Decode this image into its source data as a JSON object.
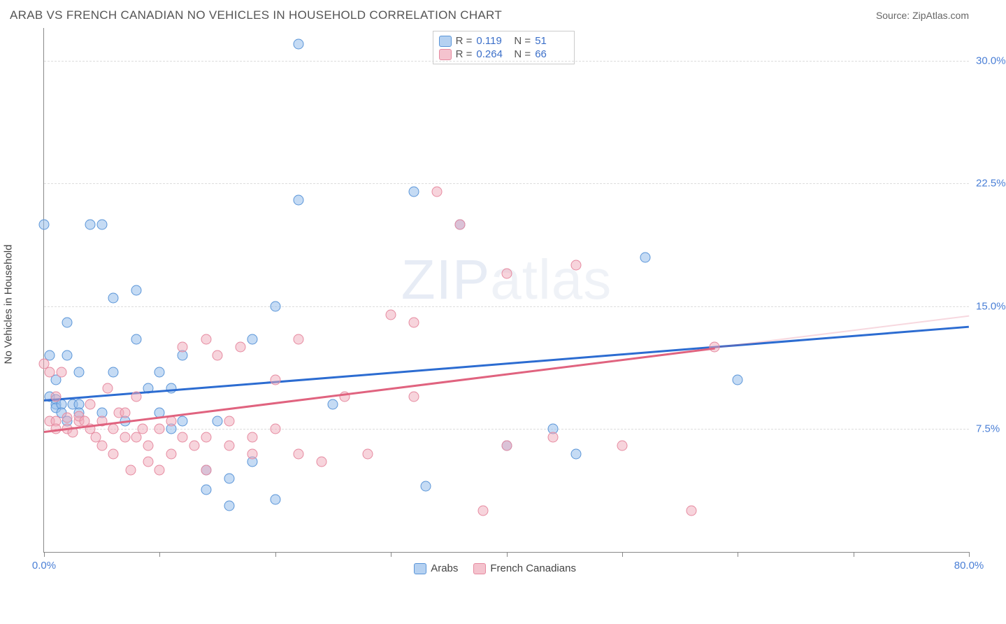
{
  "title": "ARAB VS FRENCH CANADIAN NO VEHICLES IN HOUSEHOLD CORRELATION CHART",
  "source_prefix": "Source: ",
  "source_name": "ZipAtlas.com",
  "ylabel": "No Vehicles in Household",
  "watermark_a": "ZIP",
  "watermark_b": "atlas",
  "chart": {
    "type": "scatter",
    "xlim": [
      0,
      80
    ],
    "ylim": [
      0,
      32
    ],
    "xtick_positions": [
      0,
      10,
      20,
      30,
      40,
      50,
      60,
      70,
      80
    ],
    "xtick_labels": {
      "0": "0.0%",
      "80": "80.0%"
    },
    "ytick_positions": [
      7.5,
      15.0,
      22.5,
      30.0
    ],
    "ytick_labels": [
      "7.5%",
      "15.0%",
      "22.5%",
      "30.0%"
    ],
    "grid_color": "#dddddd",
    "axis_color": "#888888",
    "background_color": "#ffffff",
    "marker_radius": 7.5,
    "series": [
      {
        "name": "Arabs",
        "color_fill": "rgba(150,190,235,0.55)",
        "color_stroke": "#5a95d8",
        "trend_color": "#2c6cd1",
        "R": "0.119",
        "N": "51",
        "trend": {
          "x1": 0,
          "y1": 9.3,
          "x2": 80,
          "y2": 13.8
        },
        "points": [
          [
            0,
            20
          ],
          [
            0.5,
            12
          ],
          [
            0.5,
            9.5
          ],
          [
            1,
            9
          ],
          [
            1,
            9.3
          ],
          [
            1,
            8.8
          ],
          [
            1,
            10.5
          ],
          [
            1.5,
            9
          ],
          [
            1.5,
            8.5
          ],
          [
            2,
            8
          ],
          [
            2,
            12
          ],
          [
            2,
            14
          ],
          [
            2.5,
            9
          ],
          [
            3,
            11
          ],
          [
            3,
            9
          ],
          [
            3,
            8.5
          ],
          [
            4,
            20
          ],
          [
            5,
            20
          ],
          [
            5,
            8.5
          ],
          [
            6,
            11
          ],
          [
            6,
            15.5
          ],
          [
            7,
            8
          ],
          [
            8,
            16
          ],
          [
            8,
            13
          ],
          [
            9,
            10
          ],
          [
            10,
            8.5
          ],
          [
            10,
            11
          ],
          [
            11,
            10
          ],
          [
            11,
            7.5
          ],
          [
            12,
            12
          ],
          [
            12,
            8
          ],
          [
            14,
            3.8
          ],
          [
            14,
            5
          ],
          [
            15,
            8
          ],
          [
            16,
            4.5
          ],
          [
            16,
            2.8
          ],
          [
            18,
            13
          ],
          [
            18,
            5.5
          ],
          [
            20,
            15
          ],
          [
            20,
            3.2
          ],
          [
            22,
            21.5
          ],
          [
            22,
            31
          ],
          [
            25,
            9
          ],
          [
            32,
            22
          ],
          [
            33,
            4
          ],
          [
            36,
            20
          ],
          [
            40,
            6.5
          ],
          [
            44,
            7.5
          ],
          [
            46,
            6
          ],
          [
            52,
            18
          ],
          [
            60,
            10.5
          ]
        ]
      },
      {
        "name": "French Canadians",
        "color_fill": "rgba(240,170,185,0.5)",
        "color_stroke": "#e68aa0",
        "trend_color": "#e0637f",
        "R": "0.264",
        "N": "66",
        "trend": {
          "x1": 0,
          "y1": 7.4,
          "x2": 58,
          "y2": 12.5
        },
        "points": [
          [
            0,
            11.5
          ],
          [
            0.5,
            11
          ],
          [
            0.5,
            8
          ],
          [
            1,
            8
          ],
          [
            1,
            9.5
          ],
          [
            1,
            7.5
          ],
          [
            1.5,
            11
          ],
          [
            2,
            7.5
          ],
          [
            2,
            8.2
          ],
          [
            2.5,
            7.3
          ],
          [
            3,
            8
          ],
          [
            3,
            8.3
          ],
          [
            3.5,
            8
          ],
          [
            4,
            7.5
          ],
          [
            4,
            9
          ],
          [
            4.5,
            7
          ],
          [
            5,
            6.5
          ],
          [
            5,
            8
          ],
          [
            5.5,
            10
          ],
          [
            6,
            6
          ],
          [
            6,
            7.5
          ],
          [
            6.5,
            8.5
          ],
          [
            7,
            7
          ],
          [
            7,
            8.5
          ],
          [
            7.5,
            5
          ],
          [
            8,
            7
          ],
          [
            8,
            9.5
          ],
          [
            8.5,
            7.5
          ],
          [
            9,
            5.5
          ],
          [
            9,
            6.5
          ],
          [
            10,
            7.5
          ],
          [
            10,
            5
          ],
          [
            11,
            8
          ],
          [
            11,
            6
          ],
          [
            12,
            12.5
          ],
          [
            12,
            7
          ],
          [
            13,
            6.5
          ],
          [
            14,
            13
          ],
          [
            14,
            7
          ],
          [
            14,
            5
          ],
          [
            15,
            12
          ],
          [
            16,
            6.5
          ],
          [
            16,
            8
          ],
          [
            17,
            12.5
          ],
          [
            18,
            7
          ],
          [
            18,
            6
          ],
          [
            20,
            10.5
          ],
          [
            20,
            7.5
          ],
          [
            22,
            13
          ],
          [
            22,
            6
          ],
          [
            24,
            5.5
          ],
          [
            26,
            9.5
          ],
          [
            28,
            6
          ],
          [
            30,
            14.5
          ],
          [
            32,
            14
          ],
          [
            32,
            9.5
          ],
          [
            34,
            22
          ],
          [
            36,
            20
          ],
          [
            38,
            2.5
          ],
          [
            40,
            17
          ],
          [
            40,
            6.5
          ],
          [
            44,
            7
          ],
          [
            46,
            17.5
          ],
          [
            50,
            6.5
          ],
          [
            56,
            2.5
          ],
          [
            58,
            12.5
          ]
        ]
      }
    ]
  },
  "legend_top_labels": {
    "R": "R =",
    "N": "N ="
  },
  "legend_bottom": [
    "Arabs",
    "French Canadians"
  ]
}
